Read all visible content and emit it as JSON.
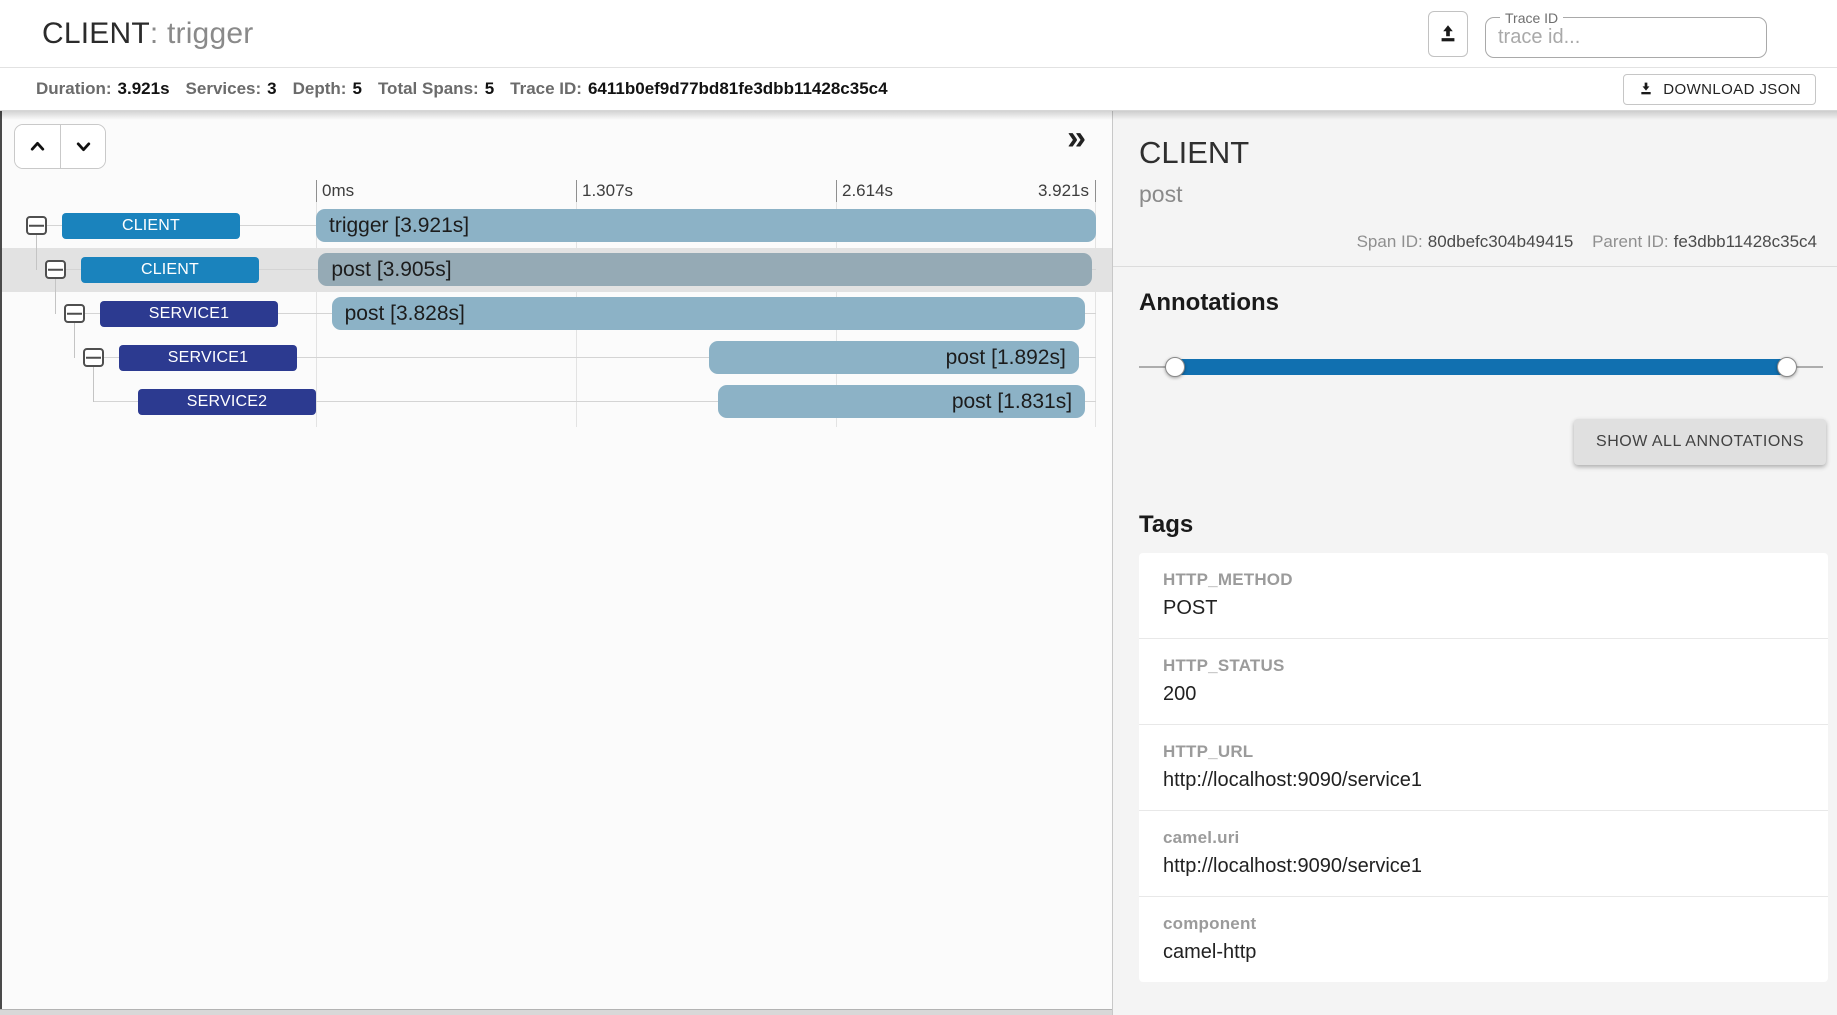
{
  "colors": {
    "client_badge": "#1a83bd",
    "service_badge": "#2c3a90",
    "bar": "#8cb2c6",
    "bar_selected": "#95aab5",
    "slider": "#1170b0",
    "selected_row_bg": "#e2e2e2"
  },
  "header": {
    "service": "CLIENT",
    "separator": ": ",
    "span": "trigger",
    "trace_id_label": "Trace ID",
    "trace_id_placeholder": "trace id..."
  },
  "stats": {
    "items": [
      {
        "label": "Duration:",
        "value": "3.921s"
      },
      {
        "label": "Services:",
        "value": "3"
      },
      {
        "label": "Depth:",
        "value": "5"
      },
      {
        "label": "Total Spans:",
        "value": "5"
      },
      {
        "label": "Trace ID:",
        "value": "6411b0ef9d77bd81fe3dbb11428c35c4"
      }
    ],
    "download_label": "DOWNLOAD JSON"
  },
  "timeline": {
    "expand_icon": "»",
    "ticks": [
      "0ms",
      "1.307s",
      "2.614s",
      "3.921s"
    ],
    "rows": [
      {
        "service": "CLIENT",
        "color": "client_badge",
        "label": "trigger [3.921s]",
        "depth": 0,
        "has_toggle": true,
        "selected": false,
        "bar": {
          "start_pct": 0,
          "width_pct": 100
        },
        "text_align": "left"
      },
      {
        "service": "CLIENT",
        "color": "client_badge",
        "label": "post [3.905s]",
        "depth": 1,
        "has_toggle": true,
        "selected": true,
        "bar": {
          "start_pct": 0.3,
          "width_pct": 99.2
        },
        "text_align": "left"
      },
      {
        "service": "SERVICE1",
        "color": "service_badge",
        "label": "post [3.828s]",
        "depth": 2,
        "has_toggle": true,
        "selected": false,
        "bar": {
          "start_pct": 2.0,
          "width_pct": 96.6
        },
        "text_align": "left"
      },
      {
        "service": "SERVICE1",
        "color": "service_badge",
        "label": "post [1.892s]",
        "depth": 3,
        "has_toggle": true,
        "selected": false,
        "bar": {
          "start_pct": 50.4,
          "width_pct": 47.4
        },
        "text_align": "right"
      },
      {
        "service": "SERVICE2",
        "color": "service_badge",
        "label": "post [1.831s]",
        "depth": 4,
        "has_toggle": false,
        "selected": false,
        "bar": {
          "start_pct": 51.5,
          "width_pct": 47.1
        },
        "text_align": "right"
      }
    ]
  },
  "detail": {
    "service": "CLIENT",
    "span_name": "post",
    "span_id_label": "Span ID:",
    "span_id": "80dbefc304b49415",
    "parent_id_label": "Parent ID:",
    "parent_id": "fe3dbb11428c35c4",
    "annotations_title": "Annotations",
    "slider": {
      "left_pct": 5.3,
      "right_pct": 94.7
    },
    "show_all_label": "SHOW ALL ANNOTATIONS",
    "tags_title": "Tags",
    "tags": [
      {
        "key": "HTTP_METHOD",
        "value": "POST"
      },
      {
        "key": "HTTP_STATUS",
        "value": "200"
      },
      {
        "key": "HTTP_URL",
        "value": "http://localhost:9090/service1"
      },
      {
        "key": "camel.uri",
        "value": "http://localhost:9090/service1"
      },
      {
        "key": "component",
        "value": "camel-http"
      }
    ]
  }
}
